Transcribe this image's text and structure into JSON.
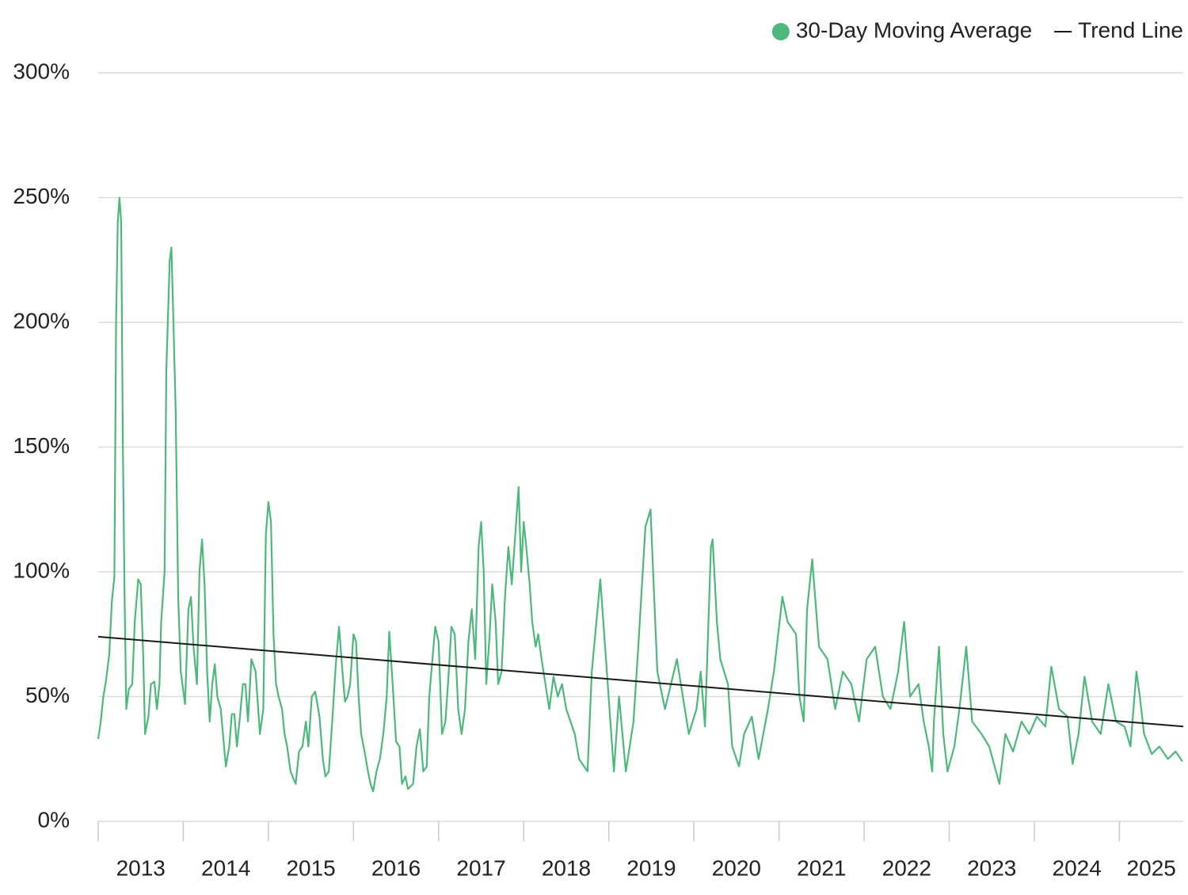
{
  "chart_data": {
    "type": "line",
    "xlim": [
      2013,
      2025.75
    ],
    "xticks": [
      2013,
      2014,
      2015,
      2016,
      2017,
      2018,
      2019,
      2020,
      2021,
      2022,
      2023,
      2024,
      2025
    ],
    "ylim": [
      0,
      300
    ],
    "yticks": [
      {
        "value": 0,
        "label": "0%"
      },
      {
        "value": 50,
        "label": "50%"
      },
      {
        "value": 100,
        "label": "100%"
      },
      {
        "value": 150,
        "label": "150%"
      },
      {
        "value": 200,
        "label": "200%"
      },
      {
        "value": 250,
        "label": "250%"
      },
      {
        "value": 300,
        "label": "300%"
      }
    ],
    "grid": true,
    "legend": "top-right",
    "series": [
      {
        "name": "30-Day Moving Average",
        "color": "#4cb87a",
        "x": [
          2013.0,
          2013.03,
          2013.06,
          2013.09,
          2013.13,
          2013.16,
          2013.19,
          2013.21,
          2013.23,
          2013.25,
          2013.27,
          2013.29,
          2013.31,
          2013.33,
          2013.36,
          2013.4,
          2013.43,
          2013.47,
          2013.5,
          2013.53,
          2013.55,
          2013.59,
          2013.62,
          2013.66,
          2013.69,
          2013.72,
          2013.74,
          2013.78,
          2013.8,
          2013.84,
          2013.86,
          2013.88,
          2013.91,
          2013.94,
          2013.97,
          2014.02,
          2014.06,
          2014.09,
          2014.12,
          2014.16,
          2014.19,
          2014.22,
          2014.25,
          2014.28,
          2014.31,
          2014.34,
          2014.37,
          2014.4,
          2014.44,
          2014.5,
          2014.54,
          2014.57,
          2014.6,
          2014.63,
          2014.66,
          2014.7,
          2014.73,
          2014.76,
          2014.8,
          2014.85,
          2014.9,
          2014.94,
          2014.97,
          2015.0,
          2015.03,
          2015.06,
          2015.09,
          2015.12,
          2015.16,
          2015.19,
          2015.22,
          2015.26,
          2015.32,
          2015.36,
          2015.4,
          2015.44,
          2015.47,
          2015.51,
          2015.55,
          2015.6,
          2015.64,
          2015.67,
          2015.71,
          2015.75,
          2015.79,
          2015.83,
          2015.87,
          2015.9,
          2015.93,
          2015.96,
          2016.0,
          2016.03,
          2016.06,
          2016.09,
          2016.13,
          2016.17,
          2016.2,
          2016.23,
          2016.27,
          2016.31,
          2016.35,
          2016.39,
          2016.42,
          2016.46,
          2016.5,
          2016.54,
          2016.57,
          2016.61,
          2016.64,
          2016.7,
          2016.74,
          2016.78,
          2016.82,
          2016.86,
          2016.89,
          2016.96,
          2017.0,
          2017.04,
          2017.08,
          2017.12,
          2017.15,
          2017.19,
          2017.23,
          2017.27,
          2017.31,
          2017.35,
          2017.39,
          2017.43,
          2017.47,
          2017.5,
          2017.53,
          2017.56,
          2017.6,
          2017.63,
          2017.67,
          2017.7,
          2017.74,
          2017.78,
          2017.82,
          2017.86,
          2017.94,
          2017.97,
          2018.0,
          2018.03,
          2018.07,
          2018.1,
          2018.14,
          2018.17,
          2018.21,
          2018.3,
          2018.35,
          2018.4,
          2018.45,
          2018.5,
          2018.55,
          2018.6,
          2018.65,
          2018.75,
          2018.8,
          2018.9,
          2019.06,
          2019.12,
          2019.2,
          2019.29,
          2019.35,
          2019.43,
          2019.49,
          2019.57,
          2019.66,
          2019.8,
          2019.94,
          2020.03,
          2020.08,
          2020.13,
          2020.2,
          2020.22,
          2020.27,
          2020.31,
          2020.4,
          2020.45,
          2020.53,
          2020.59,
          2020.68,
          2020.76,
          2020.87,
          2020.94,
          2021.04,
          2021.1,
          2021.2,
          2021.24,
          2021.29,
          2021.33,
          2021.39,
          2021.47,
          2021.57,
          2021.66,
          2021.75,
          2021.85,
          2021.94,
          2022.03,
          2022.13,
          2022.22,
          2022.31,
          2022.4,
          2022.47,
          2022.54,
          2022.64,
          2022.7,
          2022.76,
          2022.8,
          2022.82,
          2022.88,
          2022.93,
          2022.98,
          2023.06,
          2023.12,
          2023.2,
          2023.27,
          2023.38,
          2023.47,
          2023.59,
          2023.66,
          2023.75,
          2023.85,
          2023.94,
          2024.03,
          2024.13,
          2024.2,
          2024.29,
          2024.39,
          2024.45,
          2024.52,
          2024.59,
          2024.68,
          2024.78,
          2024.87,
          2024.96,
          2025.06,
          2025.13,
          2025.2,
          2025.24,
          2025.29,
          2025.38,
          2025.47,
          2025.57,
          2025.66,
          2025.74
        ],
        "values": [
          33,
          40,
          50,
          56,
          67,
          88,
          98,
          200,
          240,
          250,
          240,
          150,
          90,
          45,
          53,
          55,
          80,
          97,
          95,
          65,
          35,
          42,
          55,
          56,
          45,
          55,
          80,
          100,
          180,
          225,
          230,
          205,
          165,
          90,
          60,
          47,
          85,
          90,
          70,
          55,
          100,
          113,
          95,
          60,
          40,
          55,
          63,
          50,
          45,
          22,
          30,
          43,
          43,
          30,
          40,
          55,
          55,
          40,
          65,
          60,
          35,
          45,
          115,
          128,
          120,
          75,
          55,
          50,
          45,
          35,
          30,
          20,
          15,
          28,
          30,
          40,
          30,
          50,
          52,
          42,
          25,
          18,
          20,
          40,
          62,
          78,
          60,
          48,
          50,
          55,
          75,
          72,
          50,
          35,
          28,
          20,
          15,
          12,
          20,
          25,
          35,
          50,
          76,
          55,
          32,
          30,
          15,
          18,
          13,
          15,
          30,
          37,
          20,
          22,
          50,
          78,
          72,
          35,
          40,
          60,
          78,
          75,
          45,
          35,
          45,
          72,
          85,
          65,
          110,
          120,
          100,
          55,
          75,
          95,
          80,
          55,
          60,
          90,
          110,
          95,
          134,
          100,
          120,
          110,
          95,
          80,
          70,
          75,
          65,
          45,
          58,
          50,
          55,
          45,
          40,
          35,
          25,
          20,
          60,
          97,
          20,
          50,
          20,
          40,
          72,
          118,
          125,
          60,
          45,
          65,
          35,
          45,
          60,
          38,
          110,
          113,
          80,
          65,
          55,
          30,
          22,
          35,
          42,
          25,
          45,
          60,
          90,
          80,
          75,
          50,
          40,
          85,
          105,
          70,
          65,
          45,
          60,
          55,
          40,
          65,
          70,
          50,
          45,
          60,
          80,
          50,
          55,
          40,
          30,
          20,
          40,
          70,
          35,
          20,
          30,
          45,
          70,
          40,
          35,
          30,
          15,
          35,
          28,
          40,
          35,
          42,
          38,
          62,
          45,
          42,
          23,
          35,
          58,
          40,
          35,
          55,
          40,
          38,
          30,
          60,
          50,
          35,
          27,
          30,
          25,
          28,
          24
        ]
      },
      {
        "name": "Trend Line",
        "color": "#1a1a1a",
        "x": [
          2013,
          2025.75
        ],
        "values": [
          74,
          38
        ]
      }
    ]
  }
}
